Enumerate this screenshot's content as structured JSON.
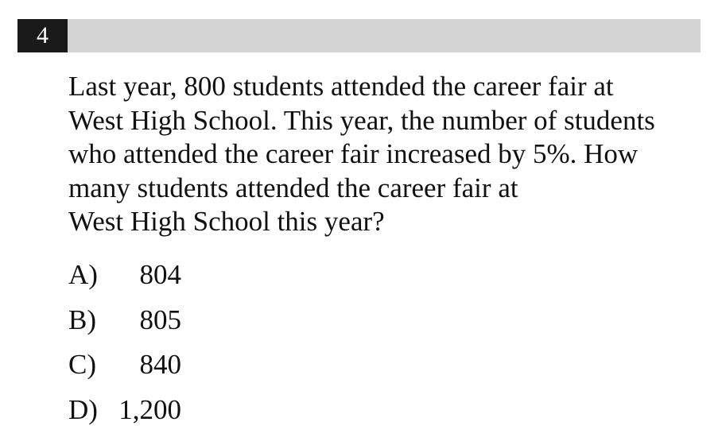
{
  "question": {
    "number": "4",
    "lines": [
      "Last year, 800 students attended the career fair at",
      "West High School. This year, the number of students",
      "who attended the career fair increased by 5%. How",
      "many students attended the career fair at",
      "West High School this year?"
    ]
  },
  "choices": [
    {
      "letter": "A)",
      "value": "804"
    },
    {
      "letter": "B)",
      "value": "805"
    },
    {
      "letter": "C)",
      "value": "840"
    },
    {
      "letter": "D)",
      "value": "1,200"
    }
  ]
}
